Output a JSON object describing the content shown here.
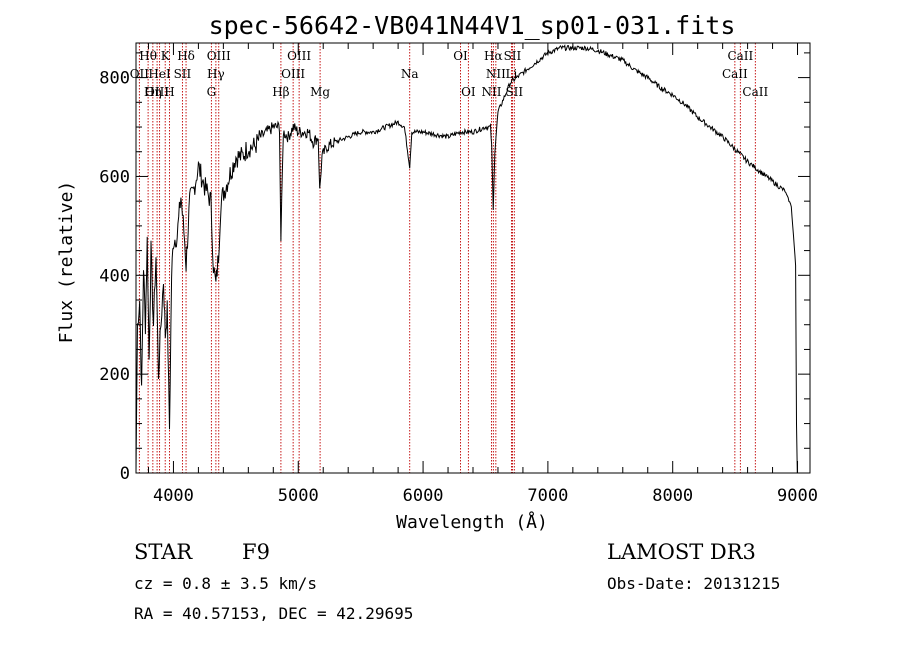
{
  "chart_data": {
    "type": "line",
    "title": "spec-56642-VB041N44V1_sp01-031.fits",
    "xlabel": "Wavelength (Å)",
    "ylabel": "Flux (relative)",
    "xlim": [
      3700,
      9100
    ],
    "ylim": [
      0,
      870
    ],
    "x_ticks": [
      4000,
      5000,
      6000,
      7000,
      8000,
      9000
    ],
    "y_ticks": [
      0,
      200,
      400,
      600,
      800
    ],
    "grid": false,
    "spectrum_anchors": [
      [
        3700,
        0
      ],
      [
        3712,
        300
      ],
      [
        3730,
        350
      ],
      [
        3745,
        160
      ],
      [
        3760,
        420
      ],
      [
        3775,
        300
      ],
      [
        3790,
        470
      ],
      [
        3805,
        230
      ],
      [
        3820,
        450
      ],
      [
        3840,
        300
      ],
      [
        3860,
        440
      ],
      [
        3880,
        200
      ],
      [
        3900,
        300
      ],
      [
        3920,
        390
      ],
      [
        3935,
        280
      ],
      [
        3950,
        330
      ],
      [
        3968,
        90
      ],
      [
        3985,
        400
      ],
      [
        4000,
        470
      ],
      [
        4030,
        480
      ],
      [
        4060,
        560
      ],
      [
        4090,
        470
      ],
      [
        4101,
        420
      ],
      [
        4130,
        550
      ],
      [
        4160,
        570
      ],
      [
        4200,
        620
      ],
      [
        4250,
        580
      ],
      [
        4300,
        550
      ],
      [
        4320,
        420
      ],
      [
        4340,
        380
      ],
      [
        4361,
        440
      ],
      [
        4380,
        550
      ],
      [
        4420,
        580
      ],
      [
        4460,
        610
      ],
      [
        4500,
        640
      ],
      [
        4550,
        640
      ],
      [
        4600,
        660
      ],
      [
        4650,
        660
      ],
      [
        4700,
        680
      ],
      [
        4750,
        690
      ],
      [
        4800,
        700
      ],
      [
        4850,
        700
      ],
      [
        4861,
        470
      ],
      [
        4880,
        690
      ],
      [
        4920,
        680
      ],
      [
        4960,
        700
      ],
      [
        5000,
        690
      ],
      [
        5040,
        690
      ],
      [
        5080,
        690
      ],
      [
        5120,
        670
      ],
      [
        5160,
        680
      ],
      [
        5172,
        570
      ],
      [
        5190,
        640
      ],
      [
        5230,
        660
      ],
      [
        5300,
        670
      ],
      [
        5400,
        680
      ],
      [
        5500,
        690
      ],
      [
        5600,
        690
      ],
      [
        5700,
        700
      ],
      [
        5800,
        710
      ],
      [
        5850,
        700
      ],
      [
        5893,
        620
      ],
      [
        5910,
        690
      ],
      [
        6000,
        690
      ],
      [
        6100,
        685
      ],
      [
        6200,
        680
      ],
      [
        6300,
        690
      ],
      [
        6400,
        690
      ],
      [
        6500,
        700
      ],
      [
        6540,
        700
      ],
      [
        6550,
        660
      ],
      [
        6562,
        530
      ],
      [
        6575,
        650
      ],
      [
        6600,
        730
      ],
      [
        6650,
        760
      ],
      [
        6700,
        790
      ],
      [
        6800,
        810
      ],
      [
        6900,
        830
      ],
      [
        7000,
        850
      ],
      [
        7100,
        860
      ],
      [
        7200,
        860
      ],
      [
        7300,
        860
      ],
      [
        7400,
        855
      ],
      [
        7500,
        845
      ],
      [
        7600,
        835
      ],
      [
        7700,
        815
      ],
      [
        7800,
        800
      ],
      [
        7900,
        780
      ],
      [
        8000,
        765
      ],
      [
        8100,
        745
      ],
      [
        8200,
        720
      ],
      [
        8300,
        700
      ],
      [
        8400,
        680
      ],
      [
        8500,
        655
      ],
      [
        8600,
        630
      ],
      [
        8700,
        610
      ],
      [
        8800,
        590
      ],
      [
        8850,
        580
      ],
      [
        8900,
        570
      ],
      [
        8950,
        540
      ],
      [
        8985,
        420
      ],
      [
        8992,
        100
      ],
      [
        8998,
        0
      ]
    ],
    "line_markers": [
      {
        "label": "Hθ",
        "wavelength": 3797,
        "row": 0
      },
      {
        "label": "OII",
        "wavelength": 3727,
        "row": 1
      },
      {
        "label": "OIII",
        "wavelength": 3869,
        "row": 2
      },
      {
        "label": "K",
        "wavelength": 3934,
        "row": 0
      },
      {
        "label": "HeI",
        "wavelength": 3889,
        "row": 1
      },
      {
        "label": "Hη",
        "wavelength": 3835,
        "row": 2
      },
      {
        "label": "H",
        "wavelength": 3968,
        "row": 2
      },
      {
        "label": "Hδ",
        "wavelength": 4101,
        "row": 0
      },
      {
        "label": "SII",
        "wavelength": 4072,
        "row": 1
      },
      {
        "label": "OIII",
        "wavelength": 4363,
        "row": 0
      },
      {
        "label": "Hγ",
        "wavelength": 4340,
        "row": 1
      },
      {
        "label": "G",
        "wavelength": 4304,
        "row": 2
      },
      {
        "label": "Hβ",
        "wavelength": 4861,
        "row": 2
      },
      {
        "label": "OIII",
        "wavelength": 5007,
        "row": 0
      },
      {
        "label": "OIII",
        "wavelength": 4959,
        "row": 1
      },
      {
        "label": "Mg",
        "wavelength": 5175,
        "row": 2
      },
      {
        "label": "Na",
        "wavelength": 5893,
        "row": 1
      },
      {
        "label": "OI",
        "wavelength": 6300,
        "row": 0
      },
      {
        "label": "OI",
        "wavelength": 6363,
        "row": 2
      },
      {
        "label": "Hα",
        "wavelength": 6563,
        "row": 0
      },
      {
        "label": "SII",
        "wavelength": 6716,
        "row": 0
      },
      {
        "label": "NII",
        "wavelength": 6583,
        "row": 1
      },
      {
        "label": "Li",
        "wavelength": 6708,
        "row": 1
      },
      {
        "label": "NII",
        "wavelength": 6548,
        "row": 2
      },
      {
        "label": "SII",
        "wavelength": 6731,
        "row": 2
      },
      {
        "label": "CaII",
        "wavelength": 8542,
        "row": 0
      },
      {
        "label": "CaII",
        "wavelength": 8498,
        "row": 1
      },
      {
        "label": "CaII",
        "wavelength": 8662,
        "row": 2
      }
    ]
  },
  "footer": {
    "class": "STAR",
    "subclass": "F9",
    "survey": "LAMOST DR3",
    "cz": "cz = 0.8 ± 3.5 km/s",
    "obs_date": "Obs-Date: 20131215",
    "coords": "RA =  40.57153, DEC =  42.29695"
  }
}
